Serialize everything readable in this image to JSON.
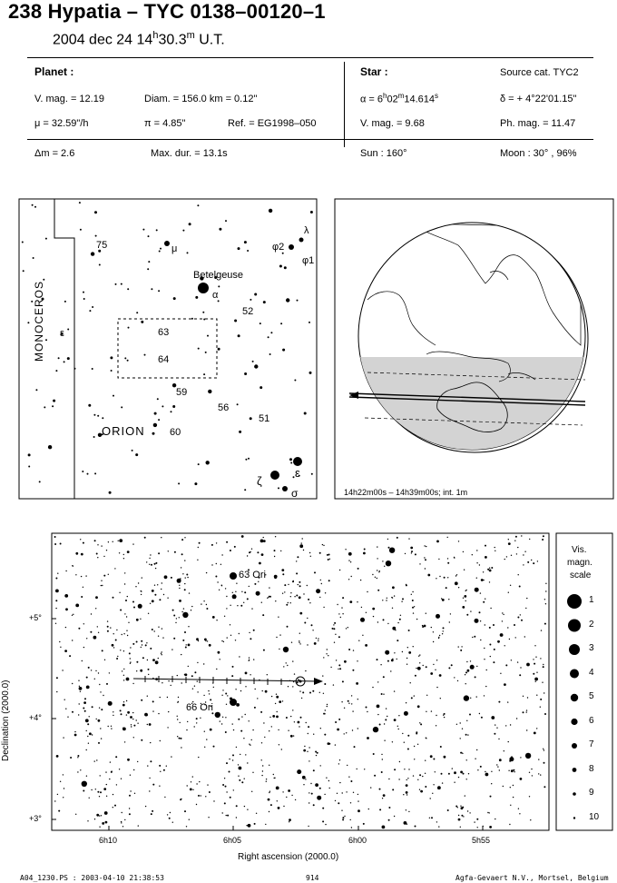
{
  "header": {
    "title": "238 Hypatia  –  TYC 0138–00120–1",
    "date": "2004 dec 24  14",
    "date_h": "h",
    "date_min": "30.3",
    "date_m": "m",
    "date_ut": " U.T."
  },
  "planet": {
    "heading": "Planet :",
    "vmag": "V. mag. = 12.19",
    "diam": "Diam. = 156.0 km = 0.12\"",
    "mu": "μ =  32.59\"/h",
    "pi": "π =  4.85\"",
    "ref": "Ref. = EG1998–050"
  },
  "star": {
    "heading": "Star :",
    "source": "Source cat.  TYC2",
    "alpha_pre": "α =  6",
    "alpha_h": "h",
    "alpha_mid": "02",
    "alpha_m": "m",
    "alpha_sec": "14.614",
    "alpha_s": "s",
    "delta": "δ = + 4°22'01.15\"",
    "vmag": "V. mag. =  9.68",
    "phmag": "Ph. mag. = 11.47"
  },
  "event": {
    "dm": "Δm = 2.6",
    "maxdur": "Max. dur. = 13.1s",
    "sun": "Sun : 160°",
    "moon": "Moon :  30° , 96%"
  },
  "finder": {
    "labels": {
      "seventyfive": "75",
      "mu": "μ",
      "phi2": "φ2",
      "lambda": "λ",
      "phi1": "φ1",
      "betelgeuse": "Betelgeuse",
      "alpha": "α",
      "fiftytwo": "52",
      "monoceros": "MONOCEROS",
      "epsilon_mon": "ε",
      "sixtythree": "63",
      "sixtyfour": "64",
      "fiftynine": "59",
      "fiftysix": "56",
      "fiftyone": "51",
      "sixty": "60",
      "orion": "ORION",
      "zeta": "ζ",
      "epsilon": "ε",
      "sigma": "σ"
    }
  },
  "globe": {
    "caption": "14h22m00s – 14h39m00s; int.  1m"
  },
  "chart": {
    "star63": "63 Ori",
    "star66": "66 Ori",
    "ylabel": "Declination (2000.0)",
    "xlabel": "Right ascension (2000.0)",
    "yticks": [
      "+5°",
      "+4°",
      "+3°"
    ],
    "xticks": [
      "6h10",
      "6h05",
      "6h00",
      "5h55"
    ]
  },
  "legend": {
    "title1": "Vis.",
    "title2": "magn.",
    "title3": "scale",
    "items": [
      "1",
      "2",
      "3",
      "4",
      "5",
      "6",
      "7",
      "8",
      "9",
      "10"
    ]
  },
  "footer": {
    "left": "A04_1230.PS : 2003-04-10 21:38:53",
    "middle": "914",
    "right": "Agfa-Gevaert N.V., Mortsel, Belgium"
  }
}
